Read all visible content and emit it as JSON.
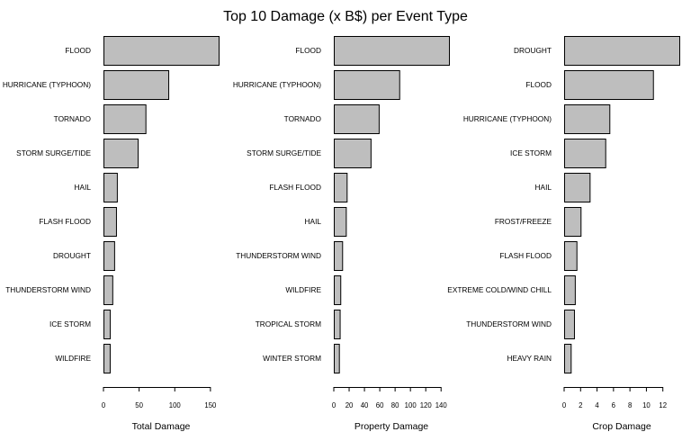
{
  "figure": {
    "title": "Top 10 Damage (x B$) per Event Type",
    "bar_color": "#bebebe",
    "edge_color": "#000000"
  },
  "chart_data": [
    {
      "type": "bar",
      "orientation": "horizontal",
      "title": "",
      "xlabel": "Total Damage",
      "ylabel": "",
      "categories": [
        "FLOOD",
        "HURRICANE (TYPHOON)",
        "TORNADO",
        "STORM SURGE/TIDE",
        "HAIL",
        "FLASH FLOOD",
        "DROUGHT",
        "THUNDERSTORM WIND",
        "ICE STORM",
        "WILDFIRE"
      ],
      "values": [
        161.5,
        90.9,
        58.9,
        48.0,
        18.8,
        17.6,
        15.0,
        12.4,
        8.9,
        8.8
      ],
      "xlim": [
        0,
        161.5
      ],
      "xticks": [
        0,
        50,
        100,
        150
      ],
      "grid": false
    },
    {
      "type": "bar",
      "orientation": "horizontal",
      "title": "",
      "xlabel": "Property Damage",
      "ylabel": "",
      "categories": [
        "FLOOD",
        "HURRICANE (TYPHOON)",
        "TORNADO",
        "STORM SURGE/TIDE",
        "FLASH FLOOD",
        "HAIL",
        "THUNDERSTORM WIND",
        "WILDFIRE",
        "TROPICAL STORM",
        "WINTER STORM"
      ],
      "values": [
        150.3,
        85.4,
        58.6,
        48.0,
        16.8,
        15.7,
        10.9,
        8.5,
        7.7,
        6.7
      ],
      "xlim": [
        0,
        150.3
      ],
      "xticks": [
        0,
        20,
        40,
        60,
        80,
        100,
        120,
        140
      ],
      "grid": false
    },
    {
      "type": "bar",
      "orientation": "horizontal",
      "title": "",
      "xlabel": "Crop Damage",
      "ylabel": "",
      "categories": [
        "DROUGHT",
        "FLOOD",
        "HURRICANE (TYPHOON)",
        "ICE STORM",
        "HAIL",
        "FROST/FREEZE",
        "FLASH FLOOD",
        "EXTREME COLD/WIND CHILL",
        "THUNDERSTORM WIND",
        "HEAVY RAIN"
      ],
      "values": [
        14.0,
        10.8,
        5.5,
        5.0,
        3.1,
        2.0,
        1.5,
        1.3,
        1.2,
        0.8
      ],
      "xlim": [
        0,
        14.0
      ],
      "xticks": [
        0,
        2,
        4,
        6,
        8,
        10,
        12
      ],
      "grid": false
    }
  ]
}
